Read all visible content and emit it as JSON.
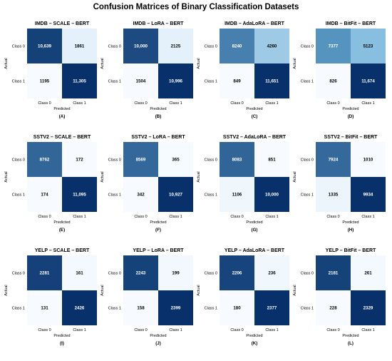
{
  "figure_title": "Confusion Matrices of Binary Classification Datasets",
  "colors": {
    "low": "#f7fbff",
    "mid": "#6baed6",
    "high": "#08306b",
    "text_dark": "#000000",
    "text_light": "#ffffff"
  },
  "chart_data": [
    {
      "type": "heatmap",
      "title": "IMDB – SCALE – BERT",
      "xlabel": "Predicted",
      "ylabel": "Actual",
      "x_ticks": [
        "Class 0",
        "Class 1"
      ],
      "y_ticks": [
        "Class 0",
        "Class 1"
      ],
      "values": [
        [
          10639,
          1861
        ],
        [
          1195,
          11305
        ]
      ],
      "cell_labels": [
        [
          "10,639",
          "1861"
        ],
        [
          "1195",
          "11,305"
        ]
      ],
      "panel_label": "(A)"
    },
    {
      "type": "heatmap",
      "title": "IMDB – LoRA – BERT",
      "xlabel": "Predicted",
      "ylabel": "Actual",
      "x_ticks": [
        "Class 0",
        "Class 1"
      ],
      "y_ticks": [
        "Class 0",
        "Class 1"
      ],
      "values": [
        [
          10000,
          2125
        ],
        [
          1504,
          10996
        ]
      ],
      "cell_labels": [
        [
          "10,000",
          "2125"
        ],
        [
          "1504",
          "10,996"
        ]
      ],
      "panel_label": "(B)"
    },
    {
      "type": "heatmap",
      "title": "IMDB – AdaLoRA – BERT",
      "xlabel": "Predicted",
      "ylabel": "Actual",
      "x_ticks": [
        "Class 0",
        "Class 1"
      ],
      "y_ticks": [
        "Class 0",
        "Class 1"
      ],
      "values": [
        [
          8240,
          4260
        ],
        [
          849,
          11651
        ]
      ],
      "cell_labels": [
        [
          "8240",
          "4260"
        ],
        [
          "849",
          "11,651"
        ]
      ],
      "panel_label": "(C)"
    },
    {
      "type": "heatmap",
      "title": "IMDB – BitFit – BERT",
      "xlabel": "Predicted",
      "ylabel": "Actual",
      "x_ticks": [
        "Class 0",
        "Class 1"
      ],
      "y_ticks": [
        "Class 0",
        "Class 1"
      ],
      "values": [
        [
          7377,
          5123
        ],
        [
          826,
          11674
        ]
      ],
      "cell_labels": [
        [
          "7377",
          "5123"
        ],
        [
          "826",
          "11,674"
        ]
      ],
      "panel_label": "(D)"
    },
    {
      "type": "heatmap",
      "title": "SSTV2 – SCALE – BERT",
      "xlabel": "Predicted",
      "ylabel": "Actual",
      "x_ticks": [
        "Class 0",
        "Class 1"
      ],
      "y_ticks": [
        "Class 0",
        "Class 1"
      ],
      "values": [
        [
          8762,
          172
        ],
        [
          174,
          11095
        ]
      ],
      "cell_labels": [
        [
          "8762",
          "172"
        ],
        [
          "174",
          "11,095"
        ]
      ],
      "panel_label": "(E)"
    },
    {
      "type": "heatmap",
      "title": "SSTV2 – LoRA – BERT",
      "xlabel": "Predicted",
      "ylabel": "Actual",
      "x_ticks": [
        "Class 0",
        "Class 1"
      ],
      "y_ticks": [
        "Class 0",
        "Class 1"
      ],
      "values": [
        [
          8569,
          365
        ],
        [
          342,
          10927
        ]
      ],
      "cell_labels": [
        [
          "8569",
          "365"
        ],
        [
          "342",
          "10,927"
        ]
      ],
      "panel_label": "(F)"
    },
    {
      "type": "heatmap",
      "title": "SSTV2 – AdaLoRA – BERT",
      "xlabel": "Predicted",
      "ylabel": "Actual",
      "x_ticks": [
        "Class 0",
        "Class 1"
      ],
      "y_ticks": [
        "Class 0",
        "Class 1"
      ],
      "values": [
        [
          8083,
          851
        ],
        [
          1106,
          10000
        ]
      ],
      "cell_labels": [
        [
          "8083",
          "851"
        ],
        [
          "1106",
          "10,000"
        ]
      ],
      "panel_label": "(G)"
    },
    {
      "type": "heatmap",
      "title": "SSTV2 – BitFit – BERT",
      "xlabel": "Predicted",
      "ylabel": "Actual",
      "x_ticks": [
        "Class 0",
        "Class 1"
      ],
      "y_ticks": [
        "Class 0",
        "Class 1"
      ],
      "values": [
        [
          7924,
          1010
        ],
        [
          1335,
          9934
        ]
      ],
      "cell_labels": [
        [
          "7924",
          "1010"
        ],
        [
          "1335",
          "9934"
        ]
      ],
      "panel_label": "(H)"
    },
    {
      "type": "heatmap",
      "title": "YELP – SCALE – BERT",
      "xlabel": "Predicted",
      "ylabel": "Actual",
      "x_ticks": [
        "Class 0",
        "Class 1"
      ],
      "y_ticks": [
        "Class 0",
        "Class 1"
      ],
      "values": [
        [
          2281,
          161
        ],
        [
          131,
          2426
        ]
      ],
      "cell_labels": [
        [
          "2281",
          "161"
        ],
        [
          "131",
          "2426"
        ]
      ],
      "panel_label": "(I)"
    },
    {
      "type": "heatmap",
      "title": "YELP – LoRA – BERT",
      "xlabel": "Predicted",
      "ylabel": "Actual",
      "x_ticks": [
        "Class 0",
        "Class 1"
      ],
      "y_ticks": [
        "Class 0",
        "Class 1"
      ],
      "values": [
        [
          2243,
          199
        ],
        [
          158,
          2399
        ]
      ],
      "cell_labels": [
        [
          "2243",
          "199"
        ],
        [
          "158",
          "2399"
        ]
      ],
      "panel_label": "(J)"
    },
    {
      "type": "heatmap",
      "title": "YELP – AdaLoRA – BERT",
      "xlabel": "Predicted",
      "ylabel": "Actual",
      "x_ticks": [
        "Class 0",
        "Class 1"
      ],
      "y_ticks": [
        "Class 0",
        "Class 1"
      ],
      "values": [
        [
          2206,
          236
        ],
        [
          180,
          2377
        ]
      ],
      "cell_labels": [
        [
          "2206",
          "236"
        ],
        [
          "180",
          "2377"
        ]
      ],
      "panel_label": "(K)"
    },
    {
      "type": "heatmap",
      "title": "YELP – BitFit – BERT",
      "xlabel": "Predicted",
      "ylabel": "Actual",
      "x_ticks": [
        "Class 0",
        "Class 1"
      ],
      "y_ticks": [
        "Class 0",
        "Class 1"
      ],
      "values": [
        [
          2181,
          261
        ],
        [
          228,
          2329
        ]
      ],
      "cell_labels": [
        [
          "2181",
          "261"
        ],
        [
          "228",
          "2329"
        ]
      ],
      "panel_label": "(L)"
    }
  ]
}
